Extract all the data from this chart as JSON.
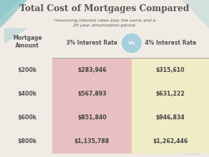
{
  "title": "Total Cost of Mortgages Compared",
  "subtitle": "*Assuming interest rates stay the same and a\n25 year amortization period.",
  "col_header_1": "Mortgage\nAmount",
  "col_header_2": "3% Interest Rate",
  "col_header_vs": "VS",
  "col_header_3": "4% Interest Rate",
  "rows": [
    {
      "amount": "$200k",
      "rate3": "$283,946",
      "rate4": "$315,610"
    },
    {
      "amount": "$400k",
      "rate3": "$567,893",
      "rate4": "$631,222"
    },
    {
      "amount": "$600k",
      "rate3": "$851,840",
      "rate4": "$946,834"
    },
    {
      "amount": "$800k",
      "rate3": "$1,135,788",
      "rate4": "$1,262,446"
    }
  ],
  "bg_color": "#f0ebe4",
  "col2_bg": "#e8c0c2",
  "col3_bg": "#f0ecc8",
  "vs_circle_color": "#a8d0dc",
  "title_color": "#555555",
  "header_color": "#555555",
  "cell_color": "#444444",
  "amount_color": "#555555",
  "divider_color": "#aaaaaa",
  "deco_teal": "#7fc4c8",
  "deco_pink": "#e8bfc0",
  "deco_blue": "#b8d8e8"
}
